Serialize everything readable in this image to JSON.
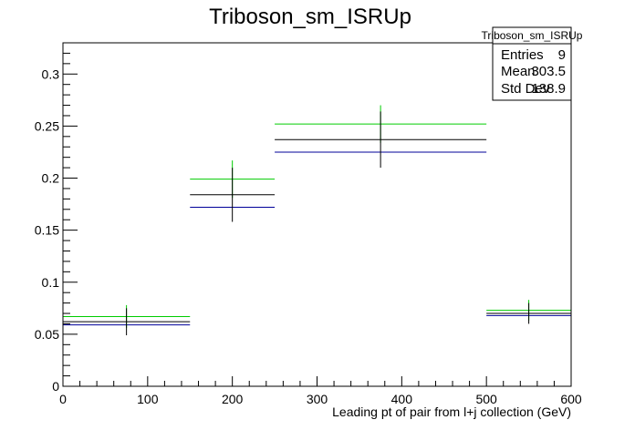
{
  "chart_data": {
    "type": "histogram",
    "title": "Triboson_sm_ISRUp",
    "xlabel": "Leading pt of pair from l+j collection (GeV)",
    "ylabel": "",
    "xlim": [
      0,
      600
    ],
    "ylim": [
      0,
      0.33
    ],
    "x_ticks": [
      0,
      100,
      200,
      300,
      400,
      500,
      600
    ],
    "x_tick_labels": [
      "0",
      "100",
      "200",
      "300",
      "400",
      "500",
      "600"
    ],
    "y_ticks": [
      0,
      0.05,
      0.1,
      0.15,
      0.2,
      0.25,
      0.3
    ],
    "y_tick_labels": [
      "0",
      "0.05",
      "0.1",
      "0.15",
      "0.2",
      "0.25",
      "0.3"
    ],
    "grid": false,
    "bin_edges": [
      0,
      150,
      250,
      500,
      600
    ],
    "series": [
      {
        "color": "#000000",
        "values": [
          0.062,
          0.184,
          0.237,
          0.07
        ],
        "errors": [
          0.013,
          0.026,
          0.027,
          0.01
        ]
      },
      {
        "color": "#00cc00",
        "values": [
          0.067,
          0.199,
          0.252,
          0.073
        ],
        "errors": [
          0.011,
          0.018,
          0.018,
          0.01
        ]
      },
      {
        "color": "#000099",
        "values": [
          0.059,
          0.172,
          0.225,
          0.068
        ]
      }
    ],
    "stats": {
      "title": "Triboson_sm_ISRUp",
      "rows": [
        {
          "label": "Entries",
          "value": "9"
        },
        {
          "label": "Mean",
          "value": "303.5"
        },
        {
          "label": "Std Dev",
          "value": "138.9"
        }
      ],
      "placement": "top-right"
    }
  }
}
